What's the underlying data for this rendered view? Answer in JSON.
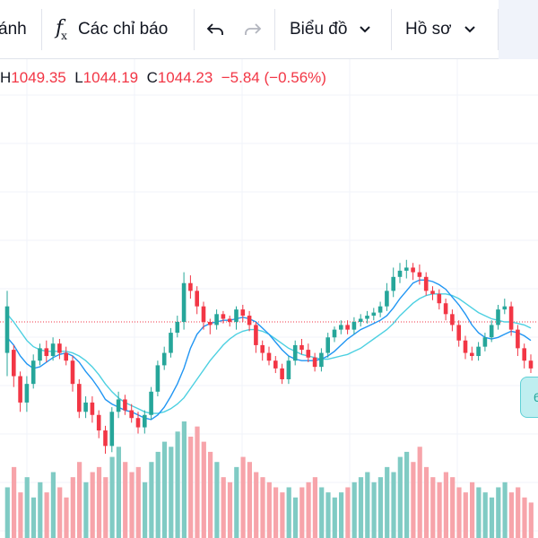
{
  "toolbar": {
    "partial_label": "ánh",
    "indicators_label": "Các chỉ báo",
    "chart_label": "Biểu đồ",
    "profile_label": "Hồ sơ"
  },
  "ohlc": {
    "h_label": "H",
    "h_value": "1049.35",
    "l_label": "L",
    "l_value": "1044.19",
    "c_label": "C",
    "c_value": "1044.23",
    "change": "−5.84 (−0.56%)"
  },
  "price_tag": "6",
  "colors": {
    "up": "#26a69a",
    "down": "#f23645",
    "ma_fast": "#2196f3",
    "ma_slow": "#4dd0e1",
    "vol_up": "#80cbc4",
    "vol_down": "#f7a4aa"
  },
  "chart_data": {
    "type": "candlestick",
    "y_range": [
      935,
      1120
    ],
    "candles": [
      [
        1000,
        1030,
        985,
        1040
      ],
      [
        1002,
        985,
        978,
        1005
      ],
      [
        985,
        968,
        962,
        988
      ],
      [
        968,
        980,
        962,
        985
      ],
      [
        980,
        995,
        977,
        999
      ],
      [
        995,
        1003,
        992,
        1006
      ],
      [
        1003,
        998,
        994,
        1008
      ],
      [
        998,
        1006,
        995,
        1010
      ],
      [
        1006,
        1000,
        996,
        1009
      ],
      [
        1000,
        995,
        992,
        1004
      ],
      [
        995,
        980,
        975,
        998
      ],
      [
        980,
        962,
        958,
        983
      ],
      [
        962,
        968,
        958,
        972
      ],
      [
        968,
        960,
        955,
        972
      ],
      [
        960,
        950,
        945,
        963
      ],
      [
        950,
        940,
        935,
        953
      ],
      [
        940,
        962,
        936,
        965
      ],
      [
        962,
        970,
        958,
        975
      ],
      [
        970,
        963,
        960,
        973
      ],
      [
        963,
        958,
        955,
        967
      ],
      [
        958,
        952,
        948,
        962
      ],
      [
        952,
        960,
        948,
        963
      ],
      [
        960,
        975,
        957,
        978
      ],
      [
        975,
        992,
        972,
        995
      ],
      [
        992,
        1000,
        989,
        1004
      ],
      [
        1000,
        1013,
        997,
        1016
      ],
      [
        1013,
        1020,
        1010,
        1024
      ],
      [
        1020,
        1045,
        1015,
        1052
      ],
      [
        1045,
        1040,
        1035,
        1050
      ],
      [
        1040,
        1030,
        1025,
        1043
      ],
      [
        1030,
        1020,
        1015,
        1033
      ],
      [
        1020,
        1018,
        1012,
        1022
      ],
      [
        1018,
        1025,
        1015,
        1028
      ],
      [
        1025,
        1022,
        1019,
        1027
      ],
      [
        1022,
        1020,
        1017,
        1024
      ],
      [
        1020,
        1028,
        1015,
        1030
      ],
      [
        1028,
        1024,
        1020,
        1031
      ],
      [
        1024,
        1018,
        1014,
        1027
      ],
      [
        1018,
        1005,
        1000,
        1020
      ],
      [
        1005,
        1000,
        995,
        1008
      ],
      [
        1000,
        995,
        992,
        1004
      ],
      [
        995,
        990,
        987,
        998
      ],
      [
        990,
        983,
        980,
        993
      ],
      [
        983,
        995,
        980,
        998
      ],
      [
        995,
        1005,
        992,
        1008
      ],
      [
        1005,
        1002,
        999,
        1009
      ],
      [
        1002,
        997,
        994,
        1006
      ],
      [
        997,
        991,
        988,
        1000
      ],
      [
        991,
        1000,
        988,
        1003
      ],
      [
        1000,
        1010,
        997,
        1013
      ],
      [
        1010,
        1015,
        1007,
        1017
      ],
      [
        1015,
        1018,
        1012,
        1021
      ],
      [
        1018,
        1015,
        1012,
        1021
      ],
      [
        1015,
        1020,
        1012,
        1023
      ],
      [
        1020,
        1022,
        1017,
        1025
      ],
      [
        1022,
        1024,
        1019,
        1027
      ],
      [
        1024,
        1026,
        1021,
        1029
      ],
      [
        1026,
        1030,
        1023,
        1033
      ],
      [
        1030,
        1040,
        1027,
        1045
      ],
      [
        1040,
        1049,
        1036,
        1055
      ],
      [
        1049,
        1053,
        1045,
        1058
      ],
      [
        1053,
        1055,
        1048,
        1060
      ],
      [
        1055,
        1052,
        1047,
        1058
      ],
      [
        1052,
        1049,
        1044,
        1057
      ],
      [
        1049,
        1040,
        1037,
        1052
      ],
      [
        1040,
        1038,
        1034,
        1043
      ],
      [
        1038,
        1032,
        1028,
        1041
      ],
      [
        1032,
        1025,
        1021,
        1035
      ],
      [
        1025,
        1018,
        1014,
        1028
      ],
      [
        1018,
        1008,
        1004,
        1021
      ],
      [
        1008,
        1000,
        996,
        1011
      ],
      [
        1000,
        998,
        995,
        1004
      ],
      [
        998,
        1004,
        995,
        1007
      ],
      [
        1004,
        1010,
        1001,
        1013
      ],
      [
        1010,
        1018,
        1007,
        1021
      ],
      [
        1018,
        1028,
        1015,
        1031
      ],
      [
        1028,
        1030,
        1025,
        1035
      ],
      [
        1030,
        1015,
        1011,
        1033
      ],
      [
        1015,
        1003,
        998,
        1018
      ],
      [
        1003,
        995,
        990,
        1006
      ],
      [
        995,
        990,
        987,
        999
      ]
    ],
    "ma_fast": [
      1010,
      1005,
      998,
      993,
      990,
      991,
      994,
      997,
      999,
      1000,
      998,
      994,
      988,
      983,
      977,
      970,
      967,
      965,
      963,
      962,
      960,
      958,
      957,
      960,
      965,
      972,
      980,
      990,
      1003,
      1012,
      1017,
      1019,
      1020,
      1021,
      1021,
      1022,
      1023,
      1022,
      1020,
      1016,
      1012,
      1007,
      1002,
      998,
      996,
      995,
      995,
      995,
      996,
      998,
      1001,
      1005,
      1009,
      1012,
      1015,
      1017,
      1019,
      1021,
      1024,
      1029,
      1035,
      1040,
      1045,
      1047,
      1047,
      1046,
      1044,
      1041,
      1036,
      1031,
      1025,
      1018,
      1013,
      1010,
      1009,
      1010,
      1012,
      1014,
      1013,
      1011,
      1008
    ],
    "ma_slow": [
      1025,
      1020,
      1014,
      1008,
      1004,
      1002,
      1001,
      1001,
      1001,
      1001,
      1000,
      998,
      995,
      991,
      986,
      980,
      975,
      971,
      968,
      966,
      964,
      962,
      961,
      961,
      962,
      964,
      967,
      971,
      977,
      983,
      989,
      995,
      1000,
      1005,
      1009,
      1012,
      1014,
      1015,
      1015,
      1014,
      1012,
      1009,
      1006,
      1003,
      1001,
      999,
      998,
      997,
      996,
      996,
      997,
      998,
      999,
      1001,
      1003,
      1006,
      1009,
      1012,
      1015,
      1019,
      1024,
      1028,
      1032,
      1035,
      1037,
      1038,
      1038,
      1038,
      1037,
      1035,
      1032,
      1029,
      1026,
      1024,
      1022,
      1021,
      1020,
      1020,
      1019,
      1018,
      1016
    ],
    "volume": [
      10,
      14,
      9,
      12,
      8,
      11,
      9,
      13,
      10,
      8,
      12,
      15,
      11,
      13,
      14,
      12,
      16,
      18,
      15,
      13,
      14,
      11,
      15,
      17,
      19,
      18,
      21,
      23,
      20,
      22,
      19,
      17,
      15,
      12,
      11,
      14,
      16,
      15,
      13,
      12,
      11,
      10,
      9,
      10,
      8,
      10,
      11,
      12,
      10,
      9,
      8,
      9,
      10,
      11,
      12,
      13,
      11,
      12,
      14,
      13,
      16,
      17,
      15,
      18,
      14,
      12,
      11,
      13,
      12,
      10,
      9,
      11,
      10,
      9,
      8,
      10,
      11,
      9,
      10,
      8,
      7
    ],
    "current_price": 1020
  }
}
